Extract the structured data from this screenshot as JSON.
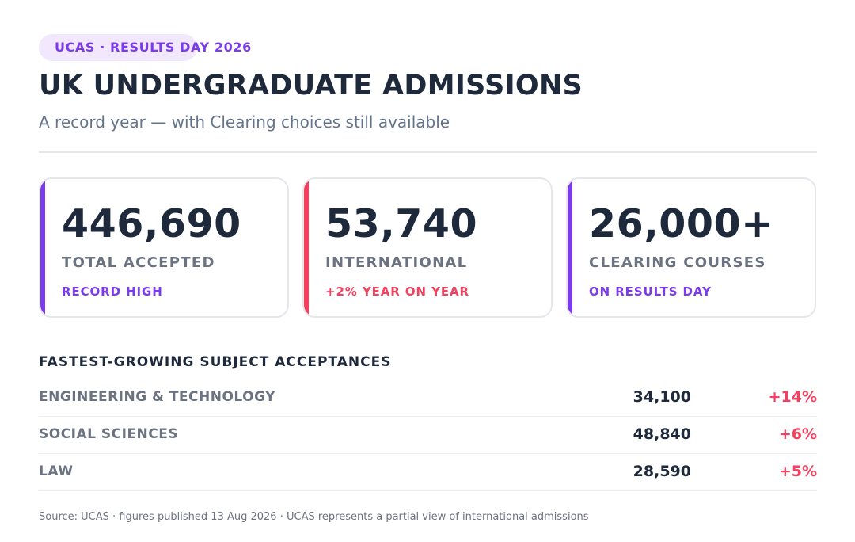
{
  "header": {
    "badge": "UCAS · RESULTS DAY 2026",
    "title": "UK UNDERGRADUATE ADMISSIONS",
    "subtitle": "A record year — with Clearing choices still available"
  },
  "stats": [
    {
      "value": "446,690",
      "label": "TOTAL ACCEPTED",
      "note": "RECORD HIGH",
      "accent": "#7c3aed"
    },
    {
      "value": "53,740",
      "label": "INTERNATIONAL",
      "note": "+2% YEAR ON YEAR",
      "accent": "#f43f5e"
    },
    {
      "value": "26,000+",
      "label": "CLEARING COURSES",
      "note": "ON RESULTS DAY",
      "accent": "#7c3aed"
    }
  ],
  "subjects": {
    "title": "FASTEST-GROWING SUBJECT ACCEPTANCES",
    "rows": [
      {
        "subject": "ENGINEERING & TECHNOLOGY",
        "count": "34,100",
        "change": "+14%"
      },
      {
        "subject": "SOCIAL SCIENCES",
        "count": "48,840",
        "change": "+6%"
      },
      {
        "subject": "LAW",
        "count": "28,590",
        "change": "+5%"
      }
    ]
  },
  "footer": {
    "source": "Source: UCAS · figures published 13 Aug 2026 · UCAS represents a partial view of international admissions"
  },
  "colors": {
    "purple": "#7c3aed",
    "red": "#f43f5e",
    "pill_bg": "#f1e8fd"
  }
}
